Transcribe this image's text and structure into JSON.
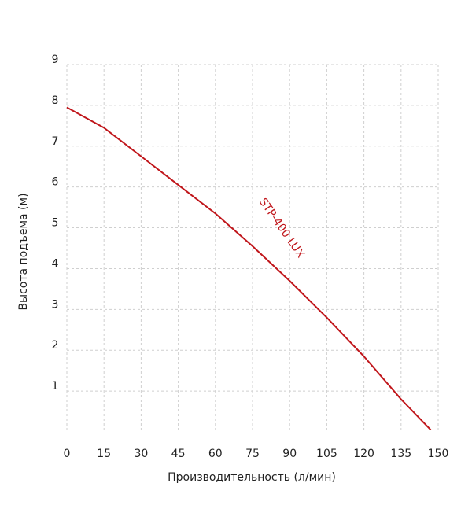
{
  "chart_data": {
    "type": "line",
    "xlabel": "Производительность (л/мин)",
    "ylabel": "Высота подъема (м)",
    "x": [
      0,
      15,
      30,
      45,
      60,
      75,
      90,
      105,
      120,
      135,
      147
    ],
    "series": [
      {
        "name": "STP-400 LUX",
        "color": "#c0161b",
        "values": [
          7.95,
          7.45,
          6.75,
          6.05,
          5.35,
          4.55,
          3.7,
          2.8,
          1.85,
          0.8,
          0.05
        ]
      }
    ],
    "xlim": [
      0,
      150
    ],
    "xticks": [
      0,
      15,
      30,
      45,
      60,
      75,
      90,
      105,
      120,
      135,
      150
    ],
    "ylim": [
      0,
      9
    ],
    "yticks": [
      1,
      2,
      3,
      4,
      5,
      6,
      7,
      8,
      9
    ],
    "grid": true
  }
}
